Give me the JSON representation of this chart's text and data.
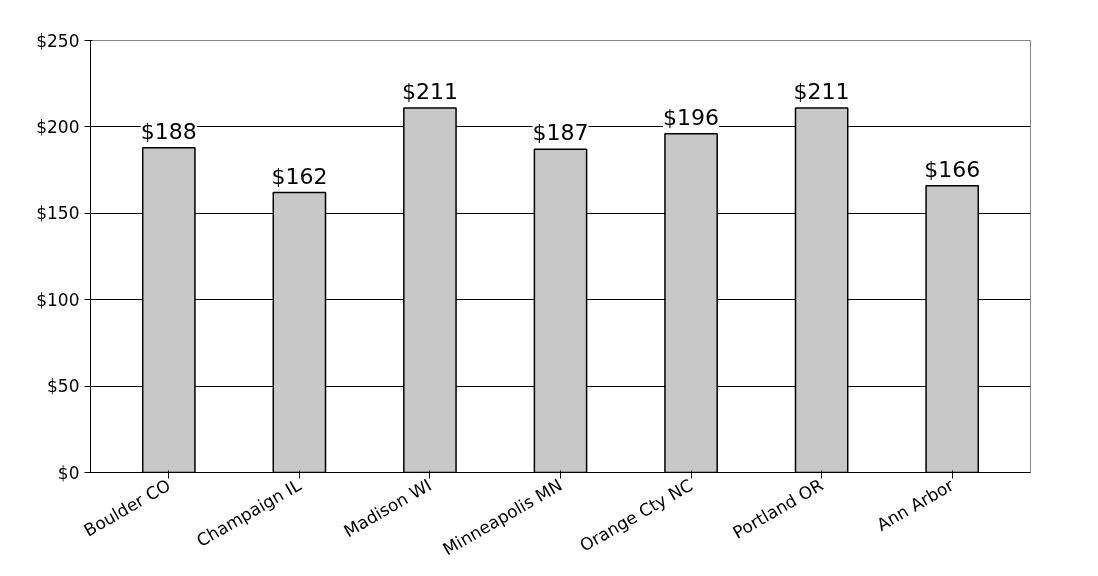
{
  "chart_data": {
    "type": "bar",
    "categories": [
      "Boulder CO",
      "Champaign IL",
      "Madison WI",
      "Minneapolis MN",
      "Orange Cty NC",
      "Portland OR",
      "Ann Arbor"
    ],
    "values": [
      188,
      162,
      211,
      187,
      196,
      211,
      166
    ],
    "value_labels": [
      "$188",
      "$162",
      "$211",
      "$187",
      "$196",
      "$211",
      "$166"
    ],
    "color": "#c8c8c8",
    "ylim": [
      0,
      250
    ],
    "yticks": [
      {
        "value": 0,
        "label": "$0"
      },
      {
        "value": 50,
        "label": "$50"
      },
      {
        "value": 100,
        "label": "$100"
      },
      {
        "value": 150,
        "label": "$150"
      },
      {
        "value": 200,
        "label": "$200"
      },
      {
        "value": 250,
        "label": "$250"
      }
    ],
    "grid": "y"
  }
}
